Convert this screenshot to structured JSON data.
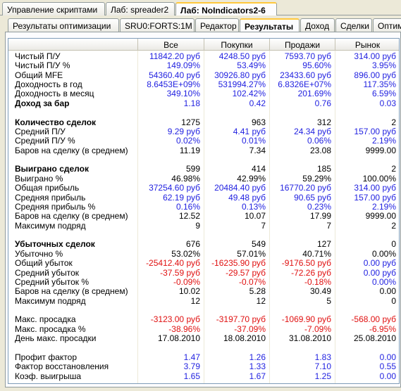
{
  "tabs": {
    "top": [
      "Управление скриптами",
      "Лаб: spreader2",
      "Лаб: NoIndicators2-6"
    ],
    "sub": [
      "Результаты оптимизации",
      "SRU0:FORTS:1M",
      "Редактор",
      "Результаты",
      "Доход",
      "Сделки",
      "Оптим"
    ]
  },
  "table": {
    "columns": [
      "Все",
      "Покупки",
      "Продажи",
      "Рынок"
    ],
    "sections": [
      {
        "rows": [
          {
            "label": "Чистый П/У",
            "values": [
              "11842.20 руб",
              "4248.50 руб",
              "7593.70 руб",
              "314.00 руб"
            ],
            "color": "#1f1fe0"
          },
          {
            "label": "Чистый П/У %",
            "values": [
              "149.09%",
              "53.49%",
              "95.60%",
              "3.95%"
            ],
            "color": "#1f1fe0"
          },
          {
            "label": "Общий MFE",
            "values": [
              "54360.40 руб",
              "30926.80 руб",
              "23433.60 руб",
              "896.00 руб"
            ],
            "color": "#1f1fe0"
          },
          {
            "label": "Доходность в год",
            "values": [
              "8.6453E+09%",
              "531994.27%",
              "6.8326E+07%",
              "117.35%"
            ],
            "color": "#1f1fe0"
          },
          {
            "label": "Доходность в месяц",
            "values": [
              "349.10%",
              "102.42%",
              "201.69%",
              "6.59%"
            ],
            "color": "#1f1fe0"
          },
          {
            "label": "Доход за бар",
            "values": [
              "1.18",
              "0.42",
              "0.76",
              "0.03"
            ],
            "color": "#1f1fe0",
            "bold": true
          }
        ]
      },
      {
        "rows": [
          {
            "label": "Количество сделок",
            "values": [
              "1275",
              "963",
              "312",
              "2"
            ],
            "bold": true
          },
          {
            "label": "Средний П/У",
            "values": [
              "9.29 руб",
              "4.41 руб",
              "24.34 руб",
              "157.00 руб"
            ],
            "color": "#1f1fe0"
          },
          {
            "label": "Средний П/У %",
            "values": [
              "0.02%",
              "0.01%",
              "0.06%",
              "2.19%"
            ],
            "color": "#1f1fe0"
          },
          {
            "label": "Баров на сделку (в среднем)",
            "values": [
              "11.19",
              "7.34",
              "23.08",
              "9999.00"
            ]
          }
        ]
      },
      {
        "rows": [
          {
            "label": "Выиграно сделок",
            "values": [
              "599",
              "414",
              "185",
              "2"
            ],
            "bold": true
          },
          {
            "label": "Выиграно %",
            "values": [
              "46.98%",
              "42.99%",
              "59.29%",
              "100.00%"
            ]
          },
          {
            "label": "Общая прибыль",
            "values": [
              "37254.60 руб",
              "20484.40 руб",
              "16770.20 руб",
              "314.00 руб"
            ],
            "color": "#1f1fe0"
          },
          {
            "label": "Средняя прибыль",
            "values": [
              "62.19 руб",
              "49.48 руб",
              "90.65 руб",
              "157.00 руб"
            ],
            "color": "#1f1fe0"
          },
          {
            "label": "Средняя прибыль %",
            "values": [
              "0.16%",
              "0.13%",
              "0.23%",
              "2.19%"
            ],
            "color": "#1f1fe0"
          },
          {
            "label": "Баров на сделку (в среднем)",
            "values": [
              "12.52",
              "10.07",
              "17.99",
              "9999.00"
            ]
          },
          {
            "label": "Максимум подряд",
            "values": [
              "9",
              "7",
              "7",
              "2"
            ]
          }
        ]
      },
      {
        "rows": [
          {
            "label": "Убыточных сделок",
            "values": [
              "676",
              "549",
              "127",
              "0"
            ],
            "bold": true
          },
          {
            "label": "Убыточно %",
            "values": [
              "53.02%",
              "57.01%",
              "40.71%",
              "0.00%"
            ]
          },
          {
            "label": "Общий убыток",
            "values": [
              "-25412.40 руб",
              "-16235.90 руб",
              "-9176.50 руб",
              "0.00 руб"
            ],
            "colors": [
              "#e01010",
              "#e01010",
              "#e01010",
              "#1f1fe0"
            ]
          },
          {
            "label": "Средний убыток",
            "values": [
              "-37.59 руб",
              "-29.57 руб",
              "-72.26 руб",
              "0.00 руб"
            ],
            "colors": [
              "#e01010",
              "#e01010",
              "#e01010",
              "#1f1fe0"
            ]
          },
          {
            "label": "Средний убыток %",
            "values": [
              "-0.09%",
              "-0.07%",
              "-0.18%",
              "0.00%"
            ],
            "colors": [
              "#e01010",
              "#e01010",
              "#e01010",
              "#1f1fe0"
            ]
          },
          {
            "label": "Баров на сделку (в среднем)",
            "values": [
              "10.02",
              "5.28",
              "30.49",
              "0.00"
            ]
          },
          {
            "label": "Максимум подряд",
            "values": [
              "12",
              "12",
              "5",
              "0"
            ]
          }
        ]
      },
      {
        "rows": [
          {
            "label": "Макс. просадка",
            "values": [
              "-3123.00 руб",
              "-3197.70 руб",
              "-1069.90 руб",
              "-568.00 руб"
            ],
            "color": "#e01010"
          },
          {
            "label": "Макс. просадка %",
            "values": [
              "-38.96%",
              "-37.09%",
              "-7.09%",
              "-6.95%"
            ],
            "color": "#e01010"
          },
          {
            "label": "День макс. просадки",
            "values": [
              "17.08.2010",
              "18.08.2010",
              "31.08.2010",
              "25.08.2010"
            ]
          }
        ]
      },
      {
        "rows": [
          {
            "label": "Профит фактор",
            "values": [
              "1.47",
              "1.26",
              "1.83",
              "0.00"
            ],
            "color": "#1f1fe0"
          },
          {
            "label": "Фактор восстановления",
            "values": [
              "3.79",
              "1.33",
              "7.10",
              "0.55"
            ],
            "color": "#1f1fe0"
          },
          {
            "label": "Коэф. выигрыша",
            "values": [
              "1.65",
              "1.67",
              "1.25",
              "0.00"
            ],
            "color": "#1f1fe0"
          }
        ]
      }
    ]
  }
}
